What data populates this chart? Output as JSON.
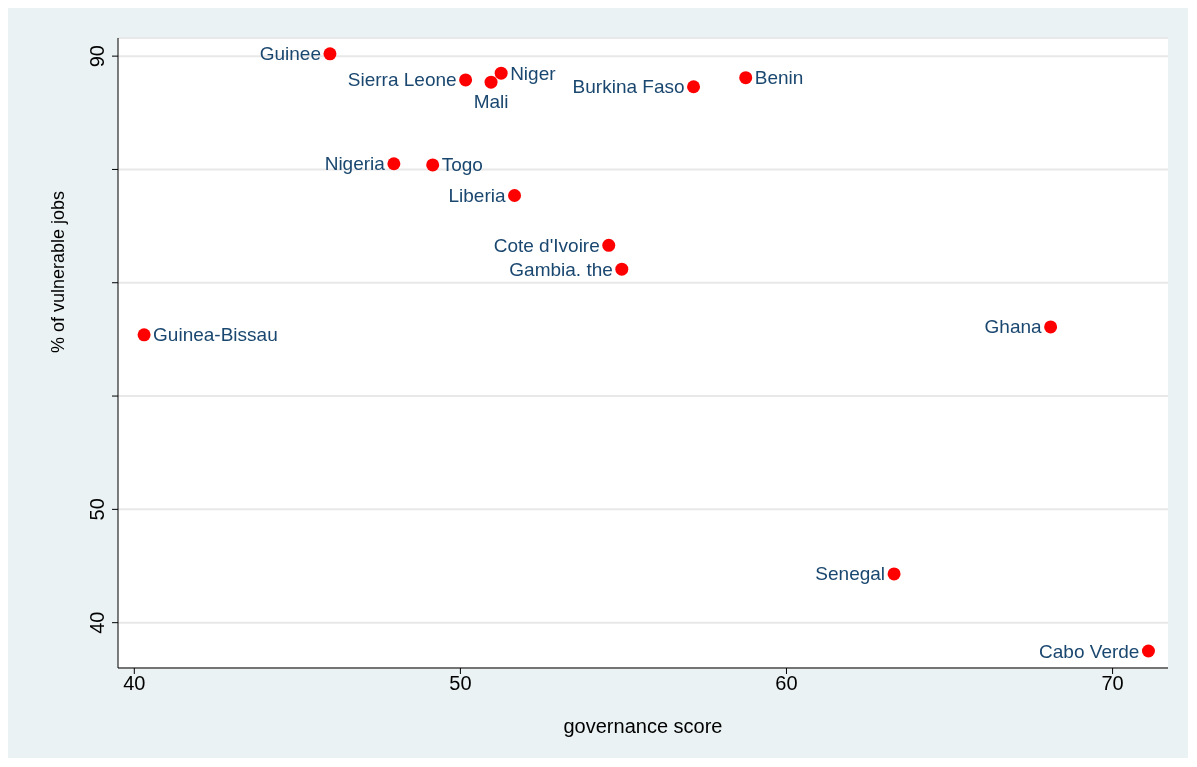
{
  "chart_data": {
    "type": "scatter",
    "xlabel": "governance score",
    "ylabel": "% of vulnerable jobs",
    "xlim": [
      39.5,
      71.7
    ],
    "ylim": [
      36,
      91.6
    ],
    "xticks": [
      40,
      50,
      60,
      70
    ],
    "yticks": [
      40,
      {
        "value": 50,
        "label": "50"
      },
      {
        "value": 60,
        "label": null
      },
      {
        "value": 70,
        "label": null
      },
      {
        "value": 80,
        "label": null
      },
      90
    ],
    "grid": "y",
    "marker": "circle",
    "series": [
      {
        "color": "#ff0000",
        "x": [
          46.0,
          51.25,
          50.94,
          50.16,
          57.15,
          58.75,
          47.96,
          49.15,
          51.66,
          54.55,
          54.95,
          40.3,
          68.1,
          63.3,
          71.1
        ],
        "values": [
          90.2,
          88.5,
          87.7,
          87.9,
          87.3,
          88.1,
          80.5,
          80.4,
          77.7,
          73.3,
          71.2,
          65.4,
          66.1,
          44.3,
          37.5
        ]
      }
    ],
    "annotations": [
      {
        "text": "Guinee",
        "x": 46.0,
        "y": 90.2
      },
      {
        "text": "Niger",
        "x": 51.25,
        "y": 88.5
      },
      {
        "text": "Mali",
        "x": 50.94,
        "y": 87.7
      },
      {
        "text": "Sierra Leone",
        "x": 50.16,
        "y": 87.9
      },
      {
        "text": "Burkina Faso",
        "x": 57.15,
        "y": 87.3
      },
      {
        "text": "Benin",
        "x": 58.75,
        "y": 88.1
      },
      {
        "text": "Nigeria",
        "x": 47.96,
        "y": 80.5
      },
      {
        "text": "Togo",
        "x": 49.15,
        "y": 80.4
      },
      {
        "text": "Liberia",
        "x": 51.66,
        "y": 77.7
      },
      {
        "text": "Cote d'Ivoire",
        "x": 54.55,
        "y": 73.3
      },
      {
        "text": "Gambia. the",
        "x": 54.95,
        "y": 71.2
      },
      {
        "text": "Guinea-Bissau",
        "x": 40.3,
        "y": 65.4
      },
      {
        "text": "Ghana",
        "x": 68.1,
        "y": 66.1
      },
      {
        "text": "Senegal",
        "x": 63.3,
        "y": 44.3
      },
      {
        "text": "Cabo Verde",
        "x": 71.1,
        "y": 37.5
      }
    ]
  }
}
